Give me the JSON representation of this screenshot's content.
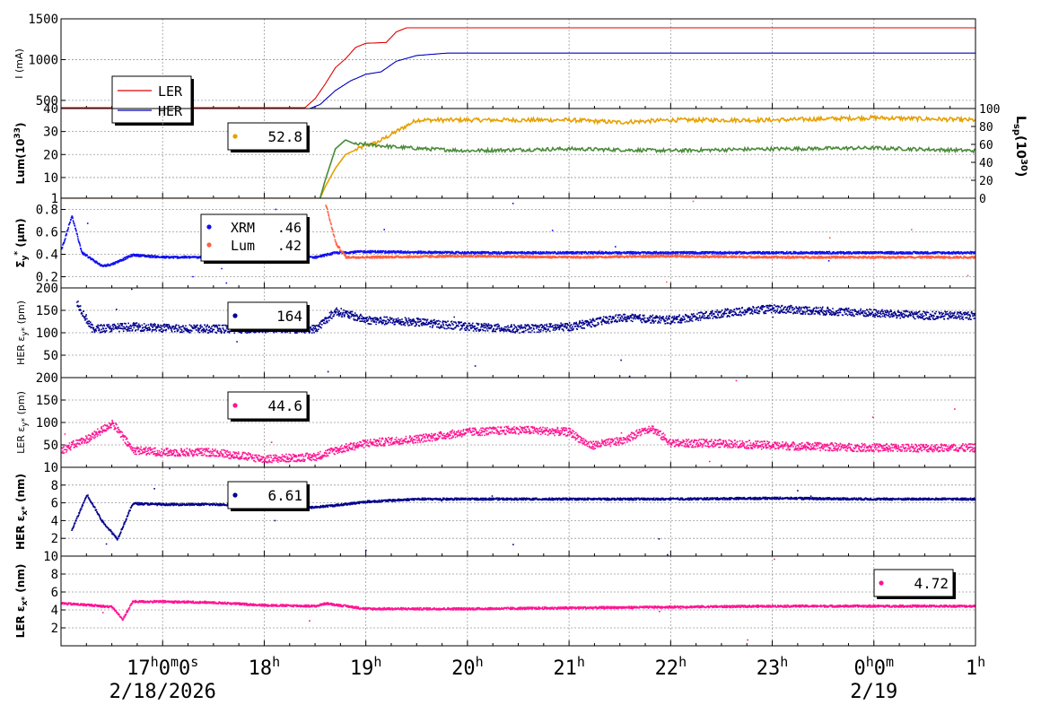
{
  "chart_data": {
    "type": "line",
    "x_axis": {
      "range": [
        "16:00",
        "25:00"
      ],
      "tick_labels": [
        {
          "t": 17,
          "label": "17h0m0s"
        },
        {
          "t": 18,
          "label": "18h"
        },
        {
          "t": 19,
          "label": "19h"
        },
        {
          "t": 20,
          "label": "20h"
        },
        {
          "t": 21,
          "label": "21h"
        },
        {
          "t": 22,
          "label": "22h"
        },
        {
          "t": 23,
          "label": "23h"
        },
        {
          "t": 24,
          "label": "0h0m"
        },
        {
          "t": 25,
          "label": "1h"
        }
      ],
      "date_labels": [
        {
          "t": 17,
          "label": "2/18/2026"
        },
        {
          "t": 24,
          "label": "2/19"
        }
      ]
    },
    "grid": true,
    "panels": [
      {
        "id": "current",
        "ylabel": "I (mA)",
        "ylim": [
          400,
          1500
        ],
        "yticks": [
          500,
          1000,
          1500
        ],
        "legend": {
          "position": "top-left",
          "style": "line",
          "entries": [
            {
              "label": "LER",
              "color": "#e00000"
            },
            {
              "label": "HER",
              "color": "#0000c0"
            }
          ]
        },
        "series": [
          {
            "name": "LER",
            "color": "#e00000",
            "mode": "line",
            "points": [
              [
                16.0,
                410
              ],
              [
                18.4,
                410
              ],
              [
                18.5,
                520
              ],
              [
                18.6,
                700
              ],
              [
                18.7,
                900
              ],
              [
                18.8,
                1010
              ],
              [
                18.9,
                1150
              ],
              [
                19.0,
                1200
              ],
              [
                19.2,
                1210
              ],
              [
                19.3,
                1340
              ],
              [
                19.4,
                1390
              ],
              [
                25.0,
                1390
              ]
            ]
          },
          {
            "name": "HER",
            "color": "#0000c0",
            "mode": "line",
            "points": [
              [
                16.0,
                400
              ],
              [
                18.45,
                400
              ],
              [
                18.55,
                450
              ],
              [
                18.7,
                620
              ],
              [
                18.85,
                740
              ],
              [
                19.0,
                820
              ],
              [
                19.15,
                850
              ],
              [
                19.3,
                980
              ],
              [
                19.5,
                1050
              ],
              [
                19.8,
                1080
              ],
              [
                20.2,
                1080
              ],
              [
                21.0,
                1080
              ],
              [
                21.8,
                1080
              ],
              [
                25.0,
                1080
              ]
            ]
          }
        ]
      },
      {
        "id": "luminosity",
        "ylabel": "Lum(10^33)",
        "ylim": [
          1,
          40
        ],
        "yticks": [
          1,
          10,
          20,
          30,
          40
        ],
        "y2label": "Lsp(10^30)",
        "y2lim": [
          0,
          100
        ],
        "y2ticks": [
          0,
          20,
          40,
          60,
          80,
          100
        ],
        "legend": {
          "position": "top-center",
          "style": "dot",
          "text": "52.8",
          "color": "#e6a000"
        },
        "series": [
          {
            "name": "Lum",
            "color": "#e6a000",
            "mode": "line",
            "axis": "y",
            "points": [
              [
                16.0,
                1
              ],
              [
                18.55,
                1
              ],
              [
                18.6,
                6
              ],
              [
                18.7,
                14
              ],
              [
                18.8,
                20
              ],
              [
                18.9,
                22
              ],
              [
                19.0,
                24
              ],
              [
                19.1,
                25
              ],
              [
                19.3,
                30
              ],
              [
                19.5,
                35
              ],
              [
                20.0,
                35
              ],
              [
                21.0,
                35
              ],
              [
                21.5,
                34
              ],
              [
                22.0,
                35
              ],
              [
                23.0,
                35
              ],
              [
                24.0,
                36
              ],
              [
                25.0,
                35
              ]
            ]
          },
          {
            "name": "Lsp",
            "color": "#4a8a3a",
            "mode": "line",
            "axis": "y2",
            "points": [
              [
                18.55,
                0
              ],
              [
                18.6,
                20
              ],
              [
                18.7,
                55
              ],
              [
                18.8,
                65
              ],
              [
                18.9,
                60
              ],
              [
                19.0,
                60
              ],
              [
                19.3,
                57
              ],
              [
                19.6,
                55
              ],
              [
                20.0,
                53
              ],
              [
                21.0,
                55
              ],
              [
                22.0,
                53
              ],
              [
                23.0,
                55
              ],
              [
                24.0,
                56
              ],
              [
                25.0,
                53
              ]
            ]
          }
        ]
      },
      {
        "id": "sigma",
        "ylabel": "Σy* (μm)",
        "ylim": [
          0.1,
          0.9
        ],
        "yticks": [
          0.2,
          0.4,
          0.6,
          0.8
        ],
        "legend": {
          "position": "top-center",
          "style": "dot",
          "entries": [
            {
              "label": "XRM",
              "value": ".46",
              "color": "#1010f0"
            },
            {
              "label": "Lum",
              "value": ".42",
              "color": "#ff6040"
            }
          ]
        },
        "series": [
          {
            "name": "XRM",
            "color": "#1010f0",
            "mode": "scatter",
            "points": [
              [
                16.0,
                0.45
              ],
              [
                16.1,
                0.75
              ],
              [
                16.2,
                0.42
              ],
              [
                16.4,
                0.3
              ],
              [
                16.5,
                0.32
              ],
              [
                16.7,
                0.4
              ],
              [
                17.0,
                0.38
              ],
              [
                17.5,
                0.38
              ],
              [
                18.0,
                0.38
              ],
              [
                18.5,
                0.38
              ],
              [
                18.7,
                0.42
              ],
              [
                19.0,
                0.43
              ],
              [
                20.0,
                0.42
              ],
              [
                21.0,
                0.42
              ],
              [
                22.0,
                0.42
              ],
              [
                23.0,
                0.42
              ],
              [
                24.0,
                0.42
              ],
              [
                25.0,
                0.42
              ]
            ]
          },
          {
            "name": "Lum",
            "color": "#ff6040",
            "mode": "scatter",
            "points": [
              [
                18.6,
                0.85
              ],
              [
                18.7,
                0.5
              ],
              [
                18.8,
                0.38
              ],
              [
                19.0,
                0.38
              ],
              [
                20.0,
                0.39
              ],
              [
                21.0,
                0.38
              ],
              [
                22.0,
                0.39
              ],
              [
                23.0,
                0.38
              ],
              [
                24.0,
                0.38
              ],
              [
                25.0,
                0.38
              ]
            ]
          }
        ]
      },
      {
        "id": "her_eps_y",
        "ylabel": "HER εy* (pm)",
        "ylim": [
          0,
          200
        ],
        "yticks": [
          50,
          100,
          150,
          200
        ],
        "legend": {
          "position": "top-center",
          "style": "dot",
          "text": "164",
          "color": "#00008b"
        },
        "series": [
          {
            "name": "HER εy*",
            "color": "#00008b",
            "mode": "scatter",
            "points": [
              [
                16.15,
                170
              ],
              [
                16.3,
                110
              ],
              [
                16.7,
                115
              ],
              [
                17.0,
                112
              ],
              [
                17.5,
                110
              ],
              [
                18.0,
                110
              ],
              [
                18.5,
                110
              ],
              [
                18.7,
                150
              ],
              [
                19.0,
                130
              ],
              [
                19.5,
                125
              ],
              [
                20.0,
                115
              ],
              [
                20.5,
                110
              ],
              [
                21.0,
                115
              ],
              [
                21.5,
                135
              ],
              [
                22.0,
                130
              ],
              [
                22.5,
                145
              ],
              [
                23.0,
                155
              ],
              [
                23.5,
                150
              ],
              [
                24.0,
                145
              ],
              [
                24.5,
                140
              ],
              [
                25.0,
                140
              ]
            ]
          }
        ]
      },
      {
        "id": "ler_eps_y",
        "ylabel": "LER εy* (pm)",
        "ylim": [
          0,
          200
        ],
        "yticks": [
          50,
          100,
          150,
          200
        ],
        "legend": {
          "position": "top-center",
          "style": "dot",
          "text": "44.6",
          "color": "#ff1493"
        },
        "series": [
          {
            "name": "LER εy*",
            "color": "#ff1493",
            "mode": "scatter",
            "points": [
              [
                16.0,
                40
              ],
              [
                16.3,
                70
              ],
              [
                16.5,
                100
              ],
              [
                16.7,
                40
              ],
              [
                17.0,
                35
              ],
              [
                17.5,
                35
              ],
              [
                18.0,
                20
              ],
              [
                18.5,
                25
              ],
              [
                18.7,
                40
              ],
              [
                19.0,
                55
              ],
              [
                19.5,
                65
              ],
              [
                20.0,
                80
              ],
              [
                20.5,
                85
              ],
              [
                21.0,
                80
              ],
              [
                21.2,
                50
              ],
              [
                21.5,
                60
              ],
              [
                21.8,
                90
              ],
              [
                22.0,
                55
              ],
              [
                22.5,
                55
              ],
              [
                23.0,
                50
              ],
              [
                24.0,
                45
              ],
              [
                25.0,
                45
              ]
            ]
          }
        ]
      },
      {
        "id": "her_eps_x",
        "ylabel": "HER εx* (nm)",
        "ylim": [
          0,
          10
        ],
        "yticks": [
          2,
          4,
          6,
          8,
          10
        ],
        "legend": {
          "position": "top-center",
          "style": "dot",
          "text": "6.61",
          "color": "#00008b"
        },
        "series": [
          {
            "name": "HER εx*",
            "color": "#00008b",
            "mode": "scatter",
            "points": [
              [
                16.1,
                3
              ],
              [
                16.25,
                7
              ],
              [
                16.4,
                4
              ],
              [
                16.55,
                2
              ],
              [
                16.7,
                6
              ],
              [
                17.0,
                5.9
              ],
              [
                17.5,
                5.9
              ],
              [
                18.0,
                5.8
              ],
              [
                18.4,
                5.5
              ],
              [
                18.7,
                5.8
              ],
              [
                19.0,
                6.2
              ],
              [
                19.5,
                6.5
              ],
              [
                20.0,
                6.5
              ],
              [
                21.0,
                6.5
              ],
              [
                22.0,
                6.5
              ],
              [
                23.0,
                6.6
              ],
              [
                24.0,
                6.5
              ],
              [
                25.0,
                6.5
              ]
            ]
          }
        ]
      },
      {
        "id": "ler_eps_x",
        "ylabel": "LER εx* (nm)",
        "ylim": [
          0,
          10
        ],
        "yticks": [
          2,
          4,
          6,
          8,
          10
        ],
        "legend": {
          "position": "right",
          "style": "dot",
          "text": "4.72",
          "color": "#ff1493"
        },
        "series": [
          {
            "name": "LER εx*",
            "color": "#ff1493",
            "mode": "scatter",
            "points": [
              [
                16.0,
                4.8
              ],
              [
                16.3,
                4.6
              ],
              [
                16.5,
                4.4
              ],
              [
                16.6,
                3.0
              ],
              [
                16.7,
                5.0
              ],
              [
                17.0,
                5.0
              ],
              [
                17.5,
                4.9
              ],
              [
                18.0,
                4.6
              ],
              [
                18.5,
                4.5
              ],
              [
                18.6,
                4.8
              ],
              [
                19.0,
                4.2
              ],
              [
                20.0,
                4.2
              ],
              [
                21.0,
                4.3
              ],
              [
                22.0,
                4.4
              ],
              [
                23.0,
                4.5
              ],
              [
                24.0,
                4.5
              ],
              [
                25.0,
                4.5
              ]
            ]
          }
        ]
      }
    ]
  }
}
